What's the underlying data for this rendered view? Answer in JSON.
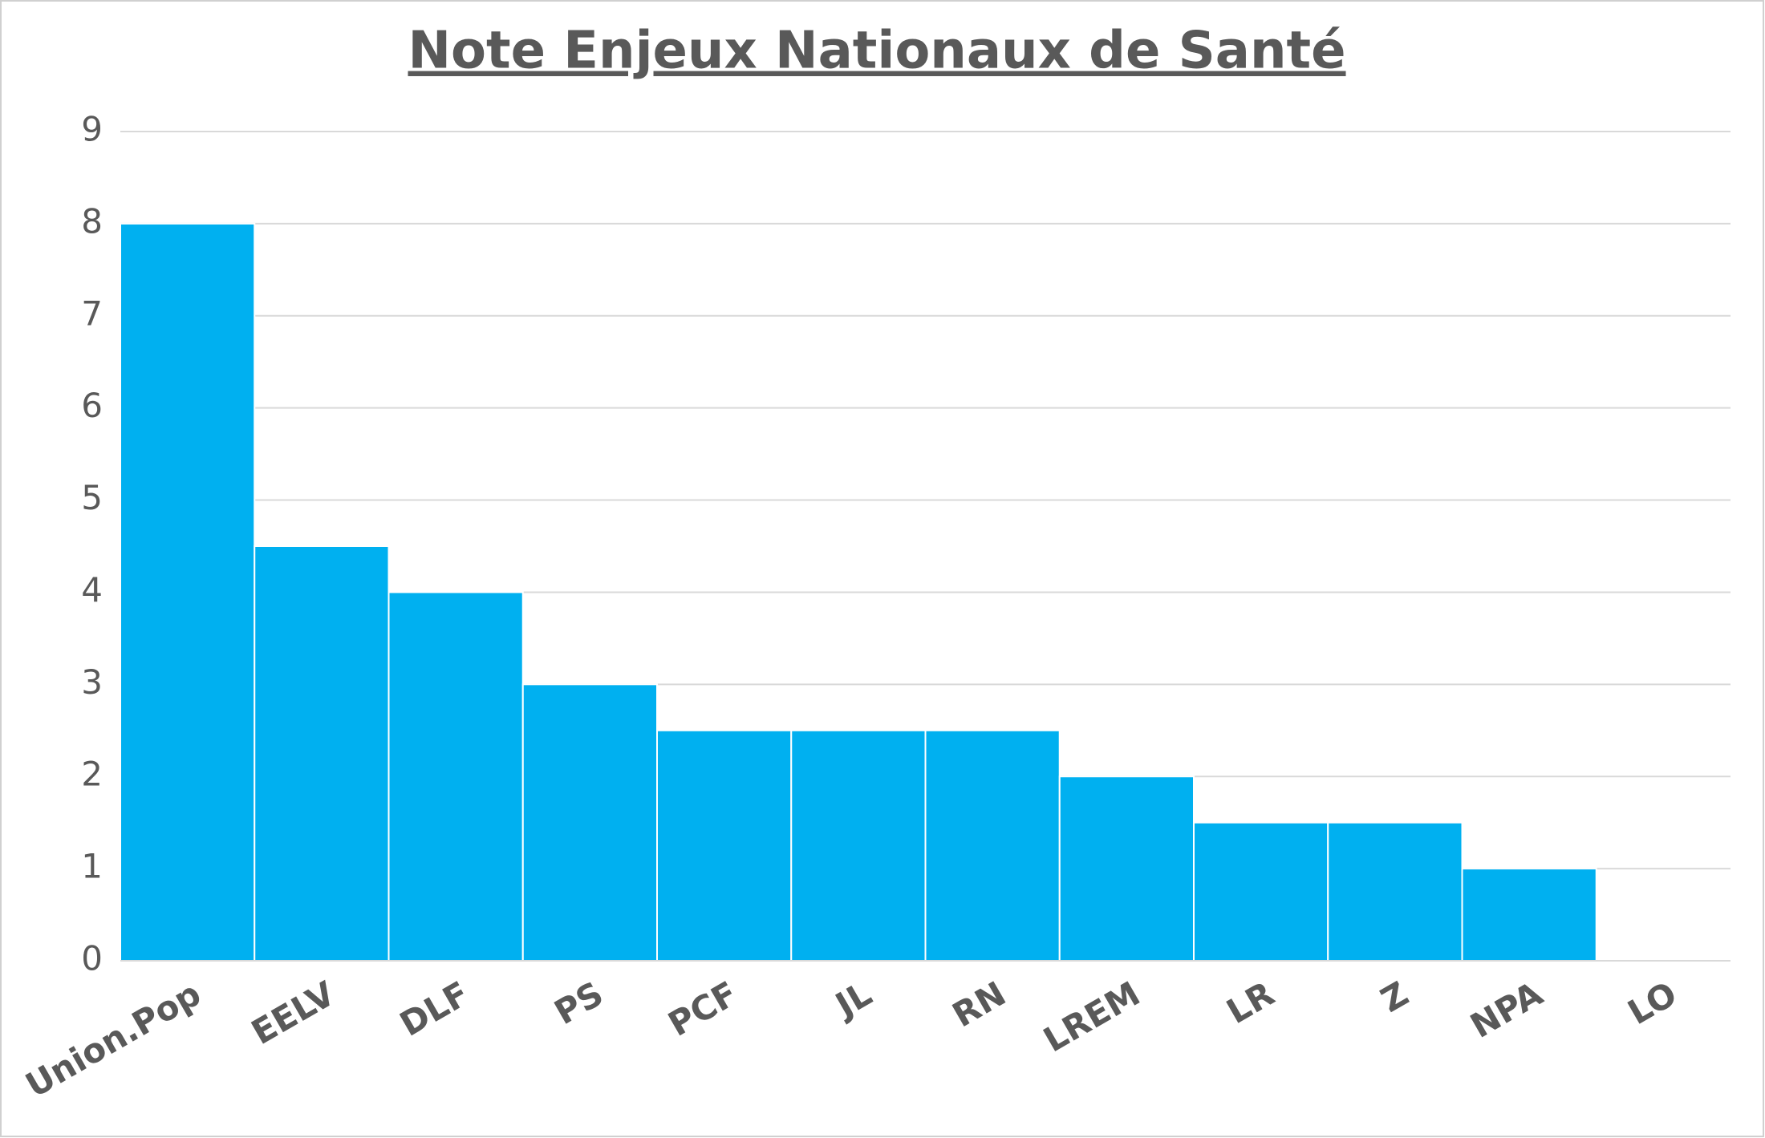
{
  "chart_data": {
    "type": "bar",
    "title": "Note Enjeux Nationaux de Santé",
    "categories": [
      "Union.Pop",
      "EELV",
      "DLF",
      "PS",
      "PCF",
      "JL",
      "RN",
      "LREM",
      "LR",
      "Z",
      "NPA",
      "LO"
    ],
    "values": [
      8,
      4.5,
      4,
      3,
      2.5,
      2.5,
      2.5,
      2,
      1.5,
      1.5,
      1,
      0
    ],
    "color": "#00b0f0",
    "ylim": [
      0,
      9
    ],
    "yticks": [
      0,
      1,
      2,
      3,
      4,
      5,
      6,
      7,
      8,
      9
    ],
    "grid": true
  }
}
